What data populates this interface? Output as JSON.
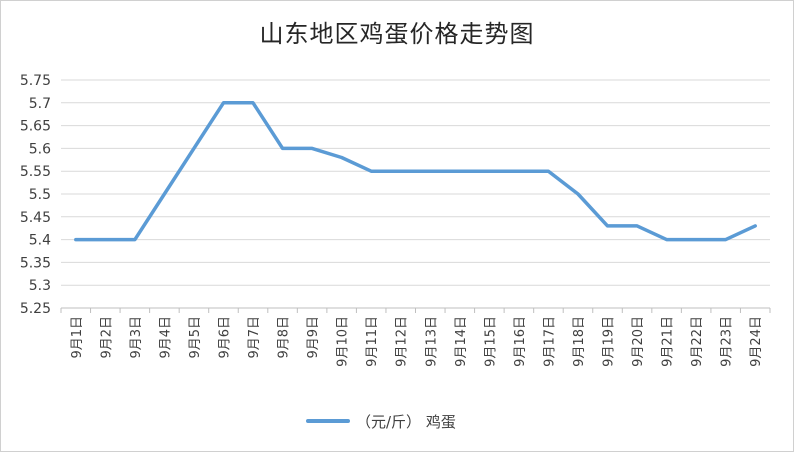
{
  "chart_data": {
    "type": "line",
    "title": "山东地区鸡蛋价格走势图",
    "xlabel": "",
    "ylabel": "",
    "categories": [
      "9月1日",
      "9月2日",
      "9月3日",
      "9月4日",
      "9月5日",
      "9月6日",
      "9月7日",
      "9月8日",
      "9月9日",
      "9月10日",
      "9月11日",
      "9月12日",
      "9月13日",
      "9月14日",
      "9月15日",
      "9月16日",
      "9月17日",
      "9月18日",
      "9月19日",
      "9月20日",
      "9月21日",
      "9月22日",
      "9月23日",
      "9月24日"
    ],
    "series": [
      {
        "name": "（元/斤） 鸡蛋",
        "values": [
          5.4,
          5.4,
          5.4,
          5.5,
          5.6,
          5.7,
          5.7,
          5.6,
          5.6,
          5.58,
          5.55,
          5.55,
          5.55,
          5.55,
          5.55,
          5.55,
          5.55,
          5.5,
          5.43,
          5.43,
          5.4,
          5.4,
          5.4,
          5.43
        ]
      }
    ],
    "ylim": [
      5.25,
      5.75
    ],
    "ytick_step": 0.05,
    "yticks": [
      "5.25",
      "5.3",
      "5.35",
      "5.4",
      "5.45",
      "5.5",
      "5.55",
      "5.6",
      "5.65",
      "5.7",
      "5.75"
    ],
    "grid": true,
    "legend": "bottom",
    "colors": {
      "line": "#5b9bd5",
      "grid": "#d9d9d9",
      "axis": "#bfbfbf"
    }
  }
}
